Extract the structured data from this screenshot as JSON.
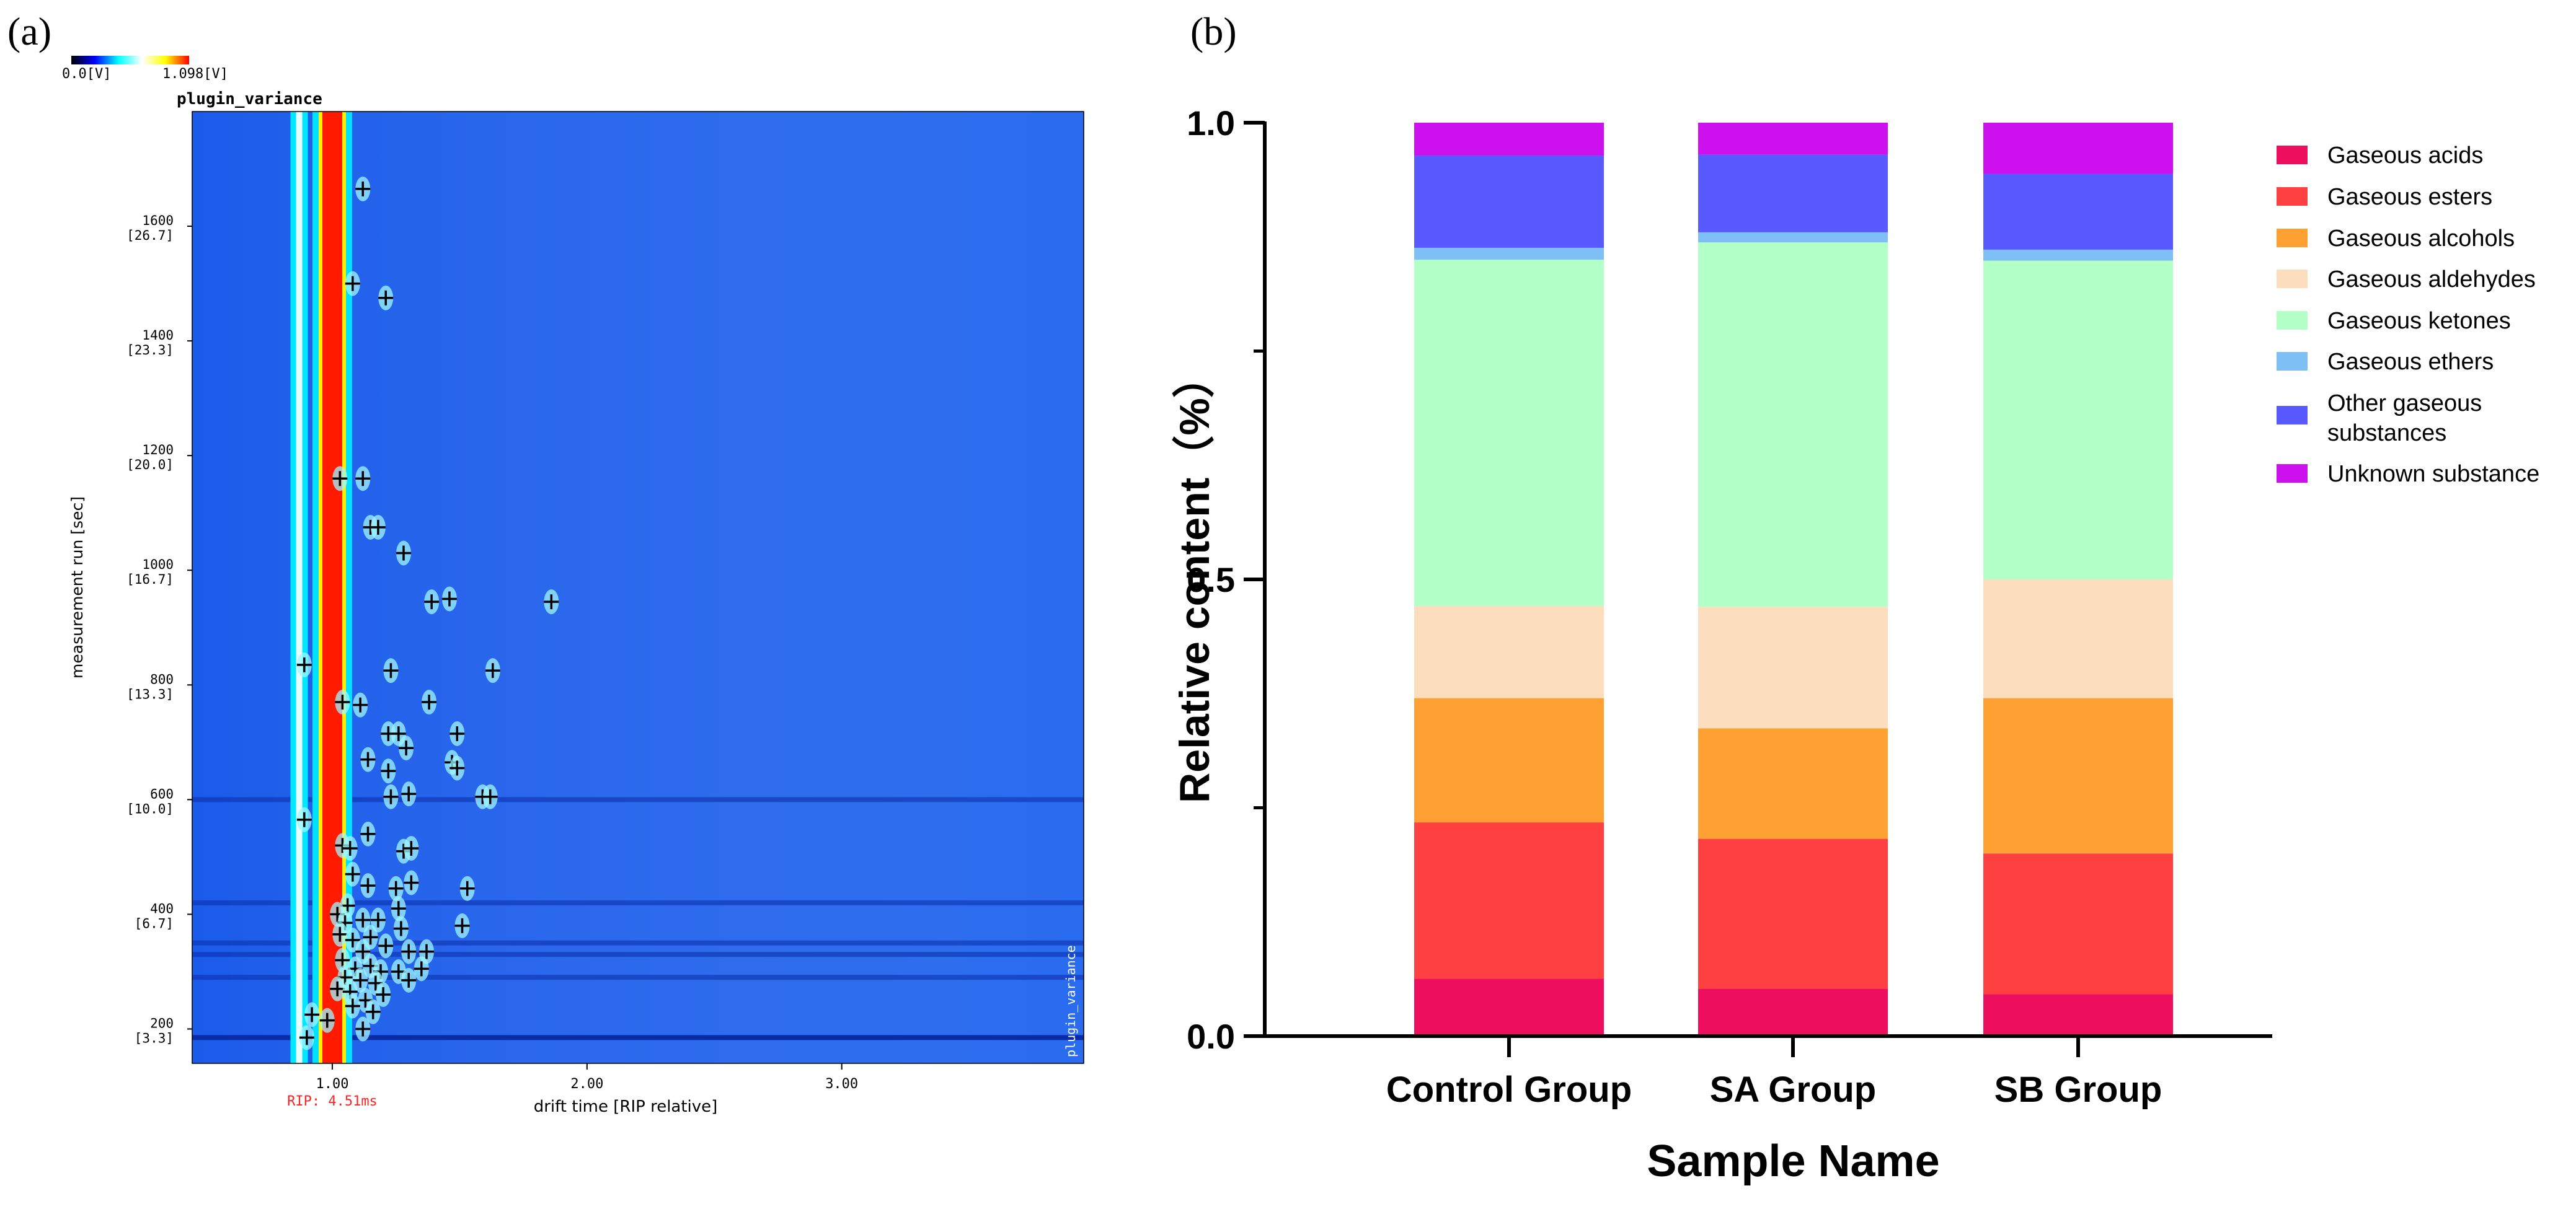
{
  "panel_labels": {
    "a": "(a)",
    "b": "(b)"
  },
  "chart_data": [
    {
      "type": "heatmap",
      "title": "plugin_variance",
      "vertical_label": "plugin_variance",
      "xlabel": "drift time [RIP relative]",
      "ylabel": "measurement run [sec]",
      "colorbar": {
        "min_label": "0.0[V]",
        "max_label": "1.098[V]",
        "colors": [
          "#000000",
          "#0000ff",
          "#00ffff",
          "#ffffff",
          "#ffff00",
          "#ff0000"
        ]
      },
      "rip_label": "RIP: 4.51ms",
      "xlim": [
        0.45,
        3.95
      ],
      "ylim": [
        140,
        1800
      ],
      "x_ticks": [
        {
          "value": 1.0,
          "label": "1.00"
        },
        {
          "value": 2.0,
          "label": "2.00"
        },
        {
          "value": 3.0,
          "label": "3.00"
        }
      ],
      "y_ticks": [
        {
          "value": 200,
          "label": "200",
          "sub": "[3.3]"
        },
        {
          "value": 400,
          "label": "400",
          "sub": "[6.7]"
        },
        {
          "value": 600,
          "label": "600",
          "sub": "[10.0]"
        },
        {
          "value": 800,
          "label": "800",
          "sub": "[13.3]"
        },
        {
          "value": 1000,
          "label": "1000",
          "sub": "[16.7]"
        },
        {
          "value": 1200,
          "label": "1200",
          "sub": "[20.0]"
        },
        {
          "value": 1400,
          "label": "1400",
          "sub": "[23.3]"
        },
        {
          "value": 1600,
          "label": "1600",
          "sub": "[26.7]"
        }
      ],
      "background_color": "#1a5bea",
      "rip_line": {
        "x": 1.0,
        "color": "#ff1a00"
      },
      "horizontal_bands": [
        185,
        290,
        330,
        350,
        420,
        600
      ],
      "spots": [
        {
          "x": 1.12,
          "y": 1665
        },
        {
          "x": 1.08,
          "y": 1500
        },
        {
          "x": 1.21,
          "y": 1475
        },
        {
          "x": 1.03,
          "y": 1160
        },
        {
          "x": 1.12,
          "y": 1160
        },
        {
          "x": 1.15,
          "y": 1075
        },
        {
          "x": 1.18,
          "y": 1075
        },
        {
          "x": 1.28,
          "y": 1030
        },
        {
          "x": 1.39,
          "y": 945
        },
        {
          "x": 1.46,
          "y": 950
        },
        {
          "x": 1.86,
          "y": 945
        },
        {
          "x": 0.89,
          "y": 835
        },
        {
          "x": 1.23,
          "y": 825
        },
        {
          "x": 1.63,
          "y": 825
        },
        {
          "x": 1.04,
          "y": 770
        },
        {
          "x": 1.11,
          "y": 765
        },
        {
          "x": 1.38,
          "y": 770
        },
        {
          "x": 1.22,
          "y": 715
        },
        {
          "x": 1.26,
          "y": 715
        },
        {
          "x": 1.49,
          "y": 715
        },
        {
          "x": 1.14,
          "y": 670
        },
        {
          "x": 1.29,
          "y": 690
        },
        {
          "x": 1.47,
          "y": 665
        },
        {
          "x": 1.49,
          "y": 655
        },
        {
          "x": 1.22,
          "y": 650
        },
        {
          "x": 1.23,
          "y": 605
        },
        {
          "x": 1.3,
          "y": 610
        },
        {
          "x": 1.59,
          "y": 605
        },
        {
          "x": 1.62,
          "y": 605
        },
        {
          "x": 0.89,
          "y": 565
        },
        {
          "x": 1.04,
          "y": 520
        },
        {
          "x": 1.07,
          "y": 515
        },
        {
          "x": 1.14,
          "y": 540
        },
        {
          "x": 1.28,
          "y": 510
        },
        {
          "x": 1.31,
          "y": 515
        },
        {
          "x": 1.08,
          "y": 470
        },
        {
          "x": 1.14,
          "y": 450
        },
        {
          "x": 1.25,
          "y": 445
        },
        {
          "x": 1.31,
          "y": 455
        },
        {
          "x": 1.53,
          "y": 445
        },
        {
          "x": 1.06,
          "y": 415
        },
        {
          "x": 1.26,
          "y": 410
        },
        {
          "x": 1.02,
          "y": 400
        },
        {
          "x": 1.05,
          "y": 385
        },
        {
          "x": 1.12,
          "y": 390
        },
        {
          "x": 1.18,
          "y": 390
        },
        {
          "x": 1.27,
          "y": 375
        },
        {
          "x": 1.51,
          "y": 380
        },
        {
          "x": 1.03,
          "y": 365
        },
        {
          "x": 1.08,
          "y": 355
        },
        {
          "x": 1.15,
          "y": 360
        },
        {
          "x": 1.21,
          "y": 345
        },
        {
          "x": 1.12,
          "y": 335
        },
        {
          "x": 1.3,
          "y": 335
        },
        {
          "x": 1.37,
          "y": 335
        },
        {
          "x": 1.04,
          "y": 320
        },
        {
          "x": 1.09,
          "y": 305
        },
        {
          "x": 1.15,
          "y": 310
        },
        {
          "x": 1.19,
          "y": 300
        },
        {
          "x": 1.26,
          "y": 300
        },
        {
          "x": 1.35,
          "y": 305
        },
        {
          "x": 1.05,
          "y": 290
        },
        {
          "x": 1.11,
          "y": 285
        },
        {
          "x": 1.17,
          "y": 280
        },
        {
          "x": 1.3,
          "y": 285
        },
        {
          "x": 1.02,
          "y": 270
        },
        {
          "x": 1.07,
          "y": 265
        },
        {
          "x": 1.13,
          "y": 250
        },
        {
          "x": 1.2,
          "y": 260
        },
        {
          "x": 0.92,
          "y": 225
        },
        {
          "x": 0.98,
          "y": 215
        },
        {
          "x": 1.08,
          "y": 240
        },
        {
          "x": 1.16,
          "y": 230
        },
        {
          "x": 0.9,
          "y": 185
        },
        {
          "x": 1.12,
          "y": 200
        }
      ]
    },
    {
      "type": "bar",
      "stacked": true,
      "categories": [
        "Control Group",
        "SA Group",
        "SB Group"
      ],
      "xlabel": "Sample Name",
      "ylabel": "Relative content（%）",
      "ylim": [
        0,
        1.0
      ],
      "y_ticks": [
        {
          "value": 0.0,
          "label": "0.0"
        },
        {
          "value": 0.5,
          "label": "0.5"
        },
        {
          "value": 1.0,
          "label": "1.0"
        }
      ],
      "legend_position": "right",
      "series": [
        {
          "name": "Gaseous acids",
          "color": "#ee0e5e",
          "values": [
            0.063,
            0.052,
            0.046
          ]
        },
        {
          "name": "Gaseous esters",
          "color": "#ff4040",
          "values": [
            0.171,
            0.164,
            0.154
          ]
        },
        {
          "name": "Gaseous alcohols",
          "color": "#ffa033",
          "values": [
            0.136,
            0.121,
            0.17
          ]
        },
        {
          "name": "Gaseous aldehydes",
          "color": "#fcddbd",
          "values": [
            0.101,
            0.133,
            0.13
          ]
        },
        {
          "name": "Gaseous ketones",
          "color": "#b2ffc8",
          "values": [
            0.379,
            0.399,
            0.349
          ]
        },
        {
          "name": "Gaseous ethers",
          "color": "#7ec0f6",
          "values": [
            0.013,
            0.011,
            0.012
          ]
        },
        {
          "name": "Other gaseous substances",
          "name_lines": [
            "Other gaseous",
            "substances"
          ],
          "color": "#5859ff",
          "values": [
            0.101,
            0.085,
            0.083
          ]
        },
        {
          "name": "Unknown substance",
          "color": "#cc10ee",
          "values": [
            0.036,
            0.035,
            0.056
          ]
        }
      ]
    }
  ]
}
